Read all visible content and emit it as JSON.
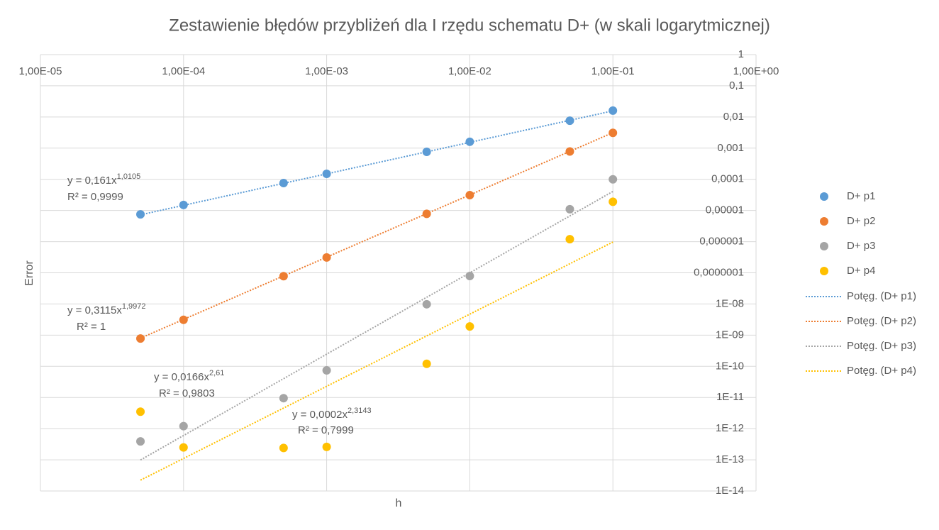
{
  "chart_data": {
    "type": "scatter",
    "title": "Zestawienie błędów przybliżeń dla I rzędu schematu D+ (w skali logarytmicznej)",
    "x_label": "h",
    "y_label": "Error",
    "x_scale": "log",
    "y_scale": "log",
    "grid": true,
    "legend": "right",
    "xlim": [
      1e-05,
      1
    ],
    "xticks": [
      {
        "value": 1e-05,
        "label": "1,00E-05"
      },
      {
        "value": 0.0001,
        "label": "1,00E-04"
      },
      {
        "value": 0.001,
        "label": "1,00E-03"
      },
      {
        "value": 0.01,
        "label": "1,00E-02"
      },
      {
        "value": 0.1,
        "label": "1,00E-01"
      },
      {
        "value": 1,
        "label": "1,00E+00"
      }
    ],
    "ylim": [
      1e-14,
      1
    ],
    "yticks": [
      1,
      {
        "value": 0.1,
        "label": "0,1"
      },
      {
        "value": 0.01,
        "label": "0,01"
      },
      {
        "value": 0.001,
        "label": "0,001"
      },
      {
        "value": 0.0001,
        "label": "0,0001"
      },
      {
        "value": 1e-05,
        "label": "0,00001"
      },
      {
        "value": 1e-06,
        "label": "0,000001"
      },
      {
        "value": 1e-07,
        "label": "0,0000001"
      },
      {
        "value": 1e-08,
        "label": "1E-08"
      },
      {
        "value": 1e-09,
        "label": "1E-09"
      },
      {
        "value": 1e-10,
        "label": "1E-10"
      },
      {
        "value": 1e-11,
        "label": "1E-11"
      },
      {
        "value": 1e-12,
        "label": "1E-12"
      },
      {
        "value": 1e-13,
        "label": "1E-13"
      },
      {
        "value": 1e-14,
        "label": "1E-14"
      }
    ],
    "x": [
      5e-05,
      0.0001,
      0.0005,
      0.001,
      0.005,
      0.01,
      0.05,
      0.1
    ],
    "series": [
      {
        "name": "D+ p1",
        "color": "#5b9bd5",
        "values": [
          7.5e-06,
          1.5e-05,
          7.6e-05,
          0.00015,
          0.00076,
          0.0016,
          0.0076,
          0.016
        ],
        "trendline": {
          "name": "Potęg. (D+ p1)",
          "coefficient": 0.161,
          "exponent": 1.0105,
          "equation": "y = 0,161x",
          "exponent_label": "1,0105",
          "r_squared": "R² = 0,9999"
        }
      },
      {
        "name": "D+ p2",
        "color": "#ed7d31",
        "values": [
          7.8e-10,
          3.1e-09,
          7.8e-08,
          3.1e-07,
          7.8e-06,
          3.1e-05,
          0.00078,
          0.0031
        ],
        "trendline": {
          "name": "Potęg. (D+ p2)",
          "coefficient": 0.3115,
          "exponent": 1.9972,
          "equation": "y = 0,3115x",
          "exponent_label": "1,9972",
          "r_squared": "R² = 1"
        }
      },
      {
        "name": "D+ p3",
        "color": "#a5a5a5",
        "values": [
          3.9e-13,
          1.2e-12,
          9.5e-12,
          7.4e-11,
          9.8e-09,
          7.9e-08,
          1.1e-05,
          0.0001
        ],
        "trendline": {
          "name": "Potęg. (D+ p3)",
          "coefficient": 0.0166,
          "exponent": 2.61,
          "equation": "y = 0,0166x",
          "exponent_label": "2,61",
          "r_squared": "R² = 0,9803"
        }
      },
      {
        "name": "D+ p4",
        "color": "#ffc000",
        "values": [
          3.5e-12,
          2.5e-13,
          2.4e-13,
          2.6e-13,
          1.2e-10,
          1.9e-09,
          1.2e-06,
          1.9e-05
        ],
        "trendline": {
          "name": "Potęg. (D+ p4)",
          "coefficient": 0.0002,
          "exponent": 2.3143,
          "equation": "y = 0,0002x",
          "exponent_label": "2,3143",
          "r_squared": "R² = 0,7999"
        }
      }
    ]
  }
}
